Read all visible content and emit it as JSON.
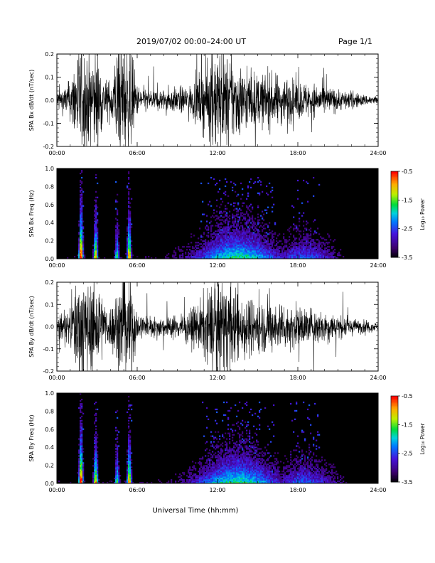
{
  "header": {
    "title": "2019/07/02   00:00–24:00 UT",
    "page": "Page 1/1"
  },
  "xaxis": {
    "label": "Universal Time (hh:mm)",
    "ticks": [
      "00:00",
      "06:00",
      "12:00",
      "18:00",
      "24:00"
    ],
    "range_hours": [
      0,
      24
    ]
  },
  "colorbar": {
    "label": "Log₁₀ Power",
    "ticks": [
      "-0.5",
      "-1.5",
      "-2.5",
      "-3.5"
    ],
    "range": [
      -3.5,
      -0.5
    ]
  },
  "chart_data": [
    {
      "type": "line",
      "ylabel": "SPA Bx dB/dt (nT/sec)",
      "ylim": [
        -0.2,
        0.2
      ],
      "yticks": [
        "0.2",
        "0.1",
        "0.0",
        "-0.1",
        "-0.2"
      ],
      "envelope": {
        "hours": [
          0,
          0.5,
          1.0,
          1.5,
          2.0,
          2.5,
          3.0,
          3.5,
          4.0,
          4.5,
          5.0,
          5.5,
          6.0,
          7.0,
          8.0,
          9.0,
          10.0,
          11.0,
          12.0,
          13.0,
          14.0,
          15.0,
          16.0,
          17.0,
          18.0,
          19.0,
          20.0,
          21.0,
          22.0,
          23.0,
          24.0
        ],
        "amplitude": [
          0.05,
          0.06,
          0.09,
          0.25,
          0.25,
          0.2,
          0.25,
          0.1,
          0.09,
          0.25,
          0.25,
          0.25,
          0.07,
          0.05,
          0.05,
          0.06,
          0.07,
          0.15,
          0.25,
          0.2,
          0.15,
          0.12,
          0.12,
          0.11,
          0.09,
          0.08,
          0.07,
          0.05,
          0.04,
          0.025,
          0.02
        ]
      }
    },
    {
      "type": "heatmap",
      "ylabel": "SPA Bx Freq (Hz)",
      "ylim": [
        0.0,
        1.0
      ],
      "yticks": [
        "1.0",
        "0.8",
        "0.6",
        "0.4",
        "0.2",
        "0.0"
      ],
      "bursts_hours": [
        1.8,
        2.9,
        4.5,
        5.4
      ],
      "bursts_strength": [
        1.0,
        0.8,
        0.6,
        0.85
      ]
    },
    {
      "type": "line",
      "ylabel": "SPA By dB/dt (nT/sec)",
      "ylim": [
        -0.2,
        0.2
      ],
      "yticks": [
        "0.2",
        "0.1",
        "0.0",
        "-0.1",
        "-0.2"
      ],
      "envelope": {
        "hours": [
          0,
          0.5,
          1.0,
          1.5,
          2.0,
          2.5,
          3.0,
          3.5,
          4.0,
          4.5,
          5.0,
          5.5,
          6.0,
          7.0,
          8.0,
          9.0,
          10.0,
          11.0,
          12.0,
          13.0,
          14.0,
          15.0,
          16.0,
          17.0,
          18.0,
          19.0,
          20.0,
          21.0,
          22.0,
          23.0,
          24.0
        ],
        "amplitude": [
          0.05,
          0.06,
          0.1,
          0.25,
          0.25,
          0.2,
          0.25,
          0.12,
          0.1,
          0.2,
          0.25,
          0.25,
          0.07,
          0.05,
          0.05,
          0.06,
          0.08,
          0.15,
          0.25,
          0.2,
          0.15,
          0.13,
          0.12,
          0.11,
          0.1,
          0.09,
          0.08,
          0.06,
          0.04,
          0.03,
          0.02
        ]
      }
    },
    {
      "type": "heatmap",
      "ylabel": "SPA By Freq (Hz)",
      "ylim": [
        0.0,
        1.0
      ],
      "yticks": [
        "1.0",
        "0.8",
        "0.6",
        "0.4",
        "0.2",
        "0.0"
      ],
      "bursts_hours": [
        1.8,
        2.9,
        4.5,
        5.4
      ],
      "bursts_strength": [
        1.0,
        0.8,
        0.6,
        0.85
      ]
    }
  ]
}
